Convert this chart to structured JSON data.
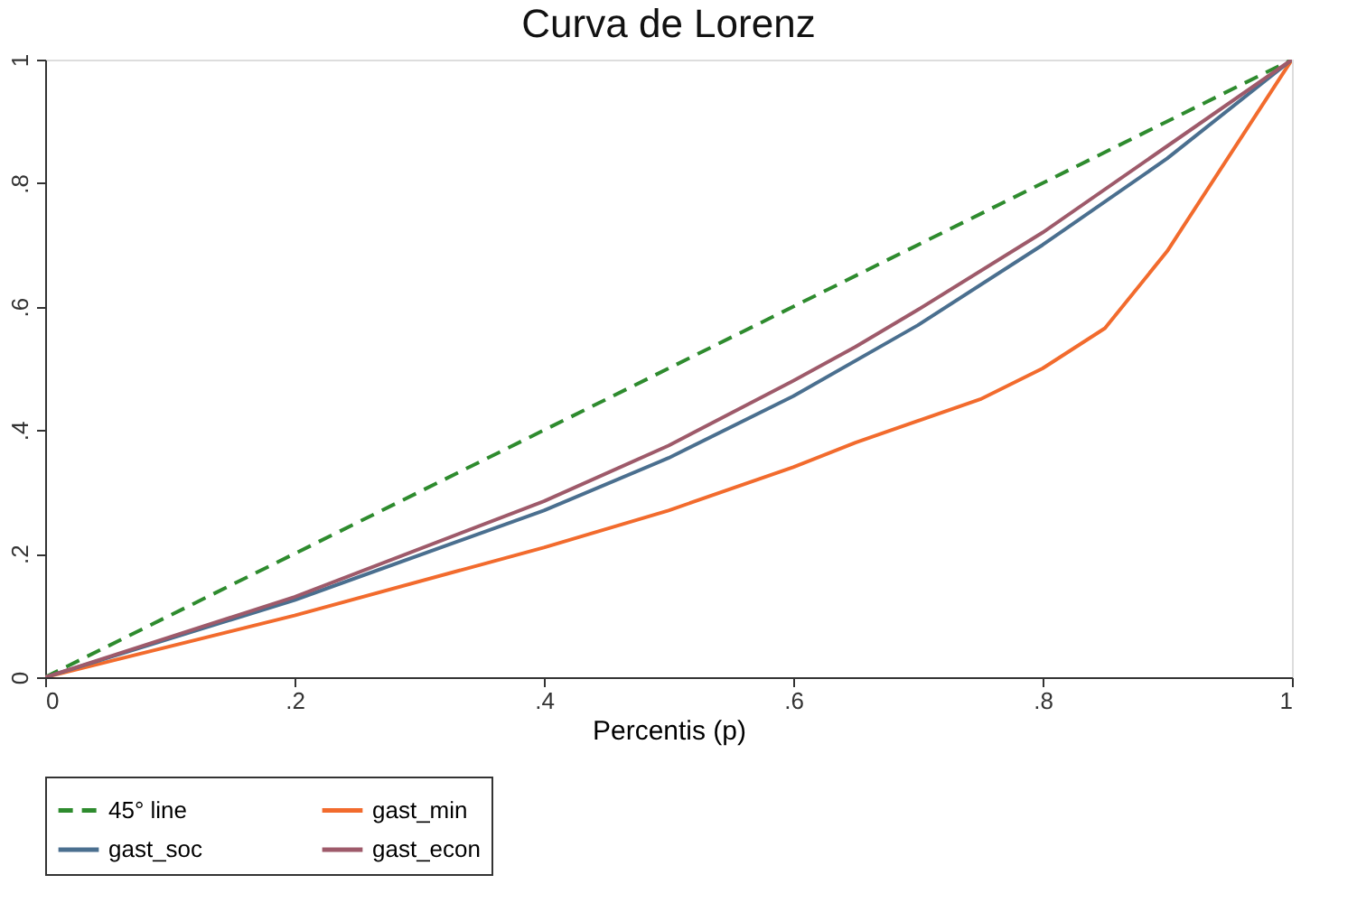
{
  "chart_data": {
    "type": "line",
    "title": "Curva de Lorenz",
    "xlabel": "Percentis (p)",
    "xlim": [
      0,
      1
    ],
    "ylim": [
      0,
      1
    ],
    "xticks": [
      0,
      {
        "value": 0.2,
        "label": ".2"
      },
      {
        "value": 0.4,
        "label": ".4"
      },
      {
        "value": 0.6,
        "label": ".6"
      },
      {
        "value": 0.8,
        "label": ".8"
      },
      1
    ],
    "yticks": [
      0,
      {
        "value": 0.2,
        "label": ".2"
      },
      {
        "value": 0.4,
        "label": ".4"
      },
      {
        "value": 0.6,
        "label": ".6"
      },
      {
        "value": 0.8,
        "label": ".8"
      },
      1
    ],
    "grid": false,
    "legend": "bottom",
    "marker": "none",
    "series": [
      {
        "name": "45° line",
        "color": "#2e8b2e",
        "line_style": "dashed",
        "x": [
          0,
          1
        ],
        "values": [
          0,
          1
        ]
      },
      {
        "name": "gast_min",
        "color": "#f26b2d",
        "line_style": "solid",
        "x": [
          0,
          0.2,
          0.4,
          0.5,
          0.6,
          0.65,
          0.75,
          0.8,
          0.85,
          0.9,
          1
        ],
        "values": [
          0,
          0.1,
          0.21,
          0.27,
          0.34,
          0.38,
          0.45,
          0.5,
          0.565,
          0.69,
          1
        ]
      },
      {
        "name": "gast_soc",
        "color": "#4a6f8f",
        "line_style": "solid",
        "x": [
          0,
          0.2,
          0.4,
          0.5,
          0.6,
          0.7,
          0.8,
          0.9,
          1
        ],
        "values": [
          0,
          0.125,
          0.27,
          0.355,
          0.455,
          0.57,
          0.7,
          0.84,
          1
        ]
      },
      {
        "name": "gast_econ",
        "color": "#9e5a6a",
        "line_style": "solid",
        "x": [
          0,
          0.2,
          0.4,
          0.5,
          0.6,
          0.65,
          0.7,
          0.8,
          0.9,
          1
        ],
        "values": [
          0,
          0.13,
          0.285,
          0.375,
          0.48,
          0.535,
          0.595,
          0.72,
          0.86,
          1
        ]
      }
    ]
  }
}
